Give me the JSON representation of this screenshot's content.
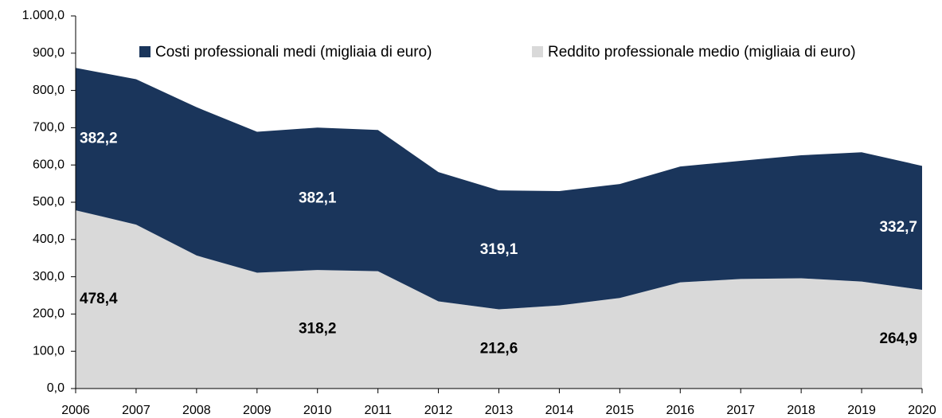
{
  "chart_data": {
    "type": "stacked_area",
    "categories": [
      "2006",
      "2007",
      "2008",
      "2009",
      "2010",
      "2011",
      "2012",
      "2013",
      "2014",
      "2015",
      "2016",
      "2017",
      "2018",
      "2019",
      "2020"
    ],
    "series": [
      {
        "name": "Reddito professionale medio (migliaia di euro)",
        "color": "#d9d9d9",
        "label_color": "#000000",
        "values": [
          478.4,
          440,
          357,
          311,
          318.2,
          315,
          234,
          212.6,
          223,
          243,
          285,
          294,
          296,
          287,
          264.9
        ],
        "value_labels": [
          "478,4",
          null,
          null,
          null,
          "318,2",
          null,
          null,
          "212,6",
          null,
          null,
          null,
          null,
          null,
          null,
          "264,9"
        ]
      },
      {
        "name": "Costi professionali medi (migliaia di euro)",
        "color": "#1a355b",
        "label_color": "#ffffff",
        "values": [
          382.2,
          390,
          398,
          378,
          382.1,
          379,
          347,
          319.1,
          307,
          306,
          311,
          317,
          330,
          347,
          332.7
        ],
        "value_labels": [
          "382,2",
          null,
          null,
          null,
          "382,1",
          null,
          null,
          "319,1",
          null,
          null,
          null,
          null,
          null,
          null,
          "332,7"
        ]
      }
    ],
    "ylim": [
      0,
      1000
    ],
    "yticks": [
      {
        "value": 0,
        "label": "0,0"
      },
      {
        "value": 100,
        "label": "100,0"
      },
      {
        "value": 200,
        "label": "200,0"
      },
      {
        "value": 300,
        "label": "300,0"
      },
      {
        "value": 400,
        "label": "400,0"
      },
      {
        "value": 500,
        "label": "500,0"
      },
      {
        "value": 600,
        "label": "600,0"
      },
      {
        "value": 700,
        "label": "700,0"
      },
      {
        "value": 800,
        "label": "800,0"
      },
      {
        "value": 900,
        "label": "900,0"
      },
      {
        "value": 1000,
        "label": "1.000,0"
      }
    ],
    "legend": "top"
  }
}
